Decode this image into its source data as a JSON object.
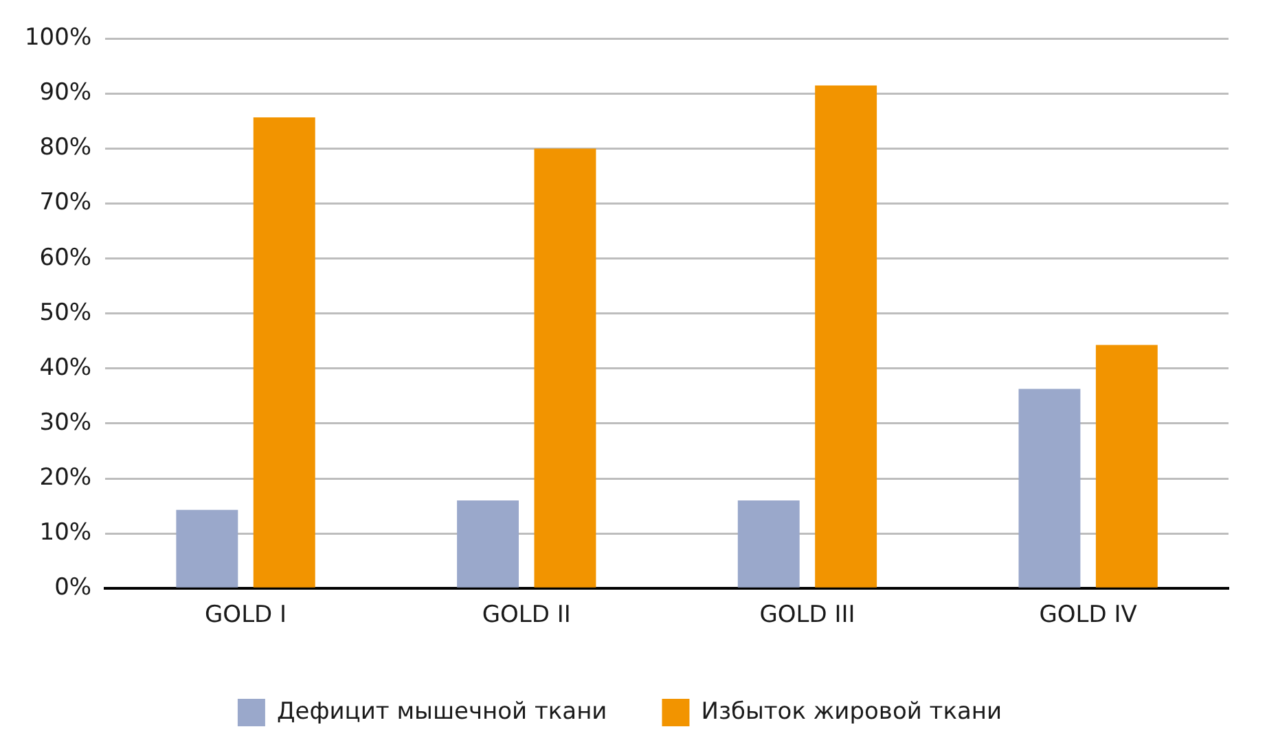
{
  "chart_data": {
    "type": "bar",
    "categories": [
      "GOLD I",
      "GOLD II",
      "GOLD III",
      "GOLD IV"
    ],
    "series": [
      {
        "name": "Дефицит мышечной ткани",
        "color": "#9aa8cb",
        "values": [
          14.3,
          16,
          16,
          36.3
        ]
      },
      {
        "name": "Избыток жировой ткани",
        "color": "#f29400",
        "values": [
          85.7,
          80,
          91.5,
          44.3
        ]
      }
    ],
    "ylim": [
      0,
      100
    ],
    "yticks": [
      {
        "value": 0,
        "label": "0%"
      },
      {
        "value": 10,
        "label": "10%"
      },
      {
        "value": 20,
        "label": "20%"
      },
      {
        "value": 30,
        "label": "30%"
      },
      {
        "value": 40,
        "label": "40%"
      },
      {
        "value": 50,
        "label": "50%"
      },
      {
        "value": 60,
        "label": "60%"
      },
      {
        "value": 70,
        "label": "70%"
      },
      {
        "value": 80,
        "label": "80%"
      },
      {
        "value": 90,
        "label": "90%"
      },
      {
        "value": 100,
        "label": "100%"
      }
    ],
    "grid": "y",
    "legend": "bottom"
  }
}
